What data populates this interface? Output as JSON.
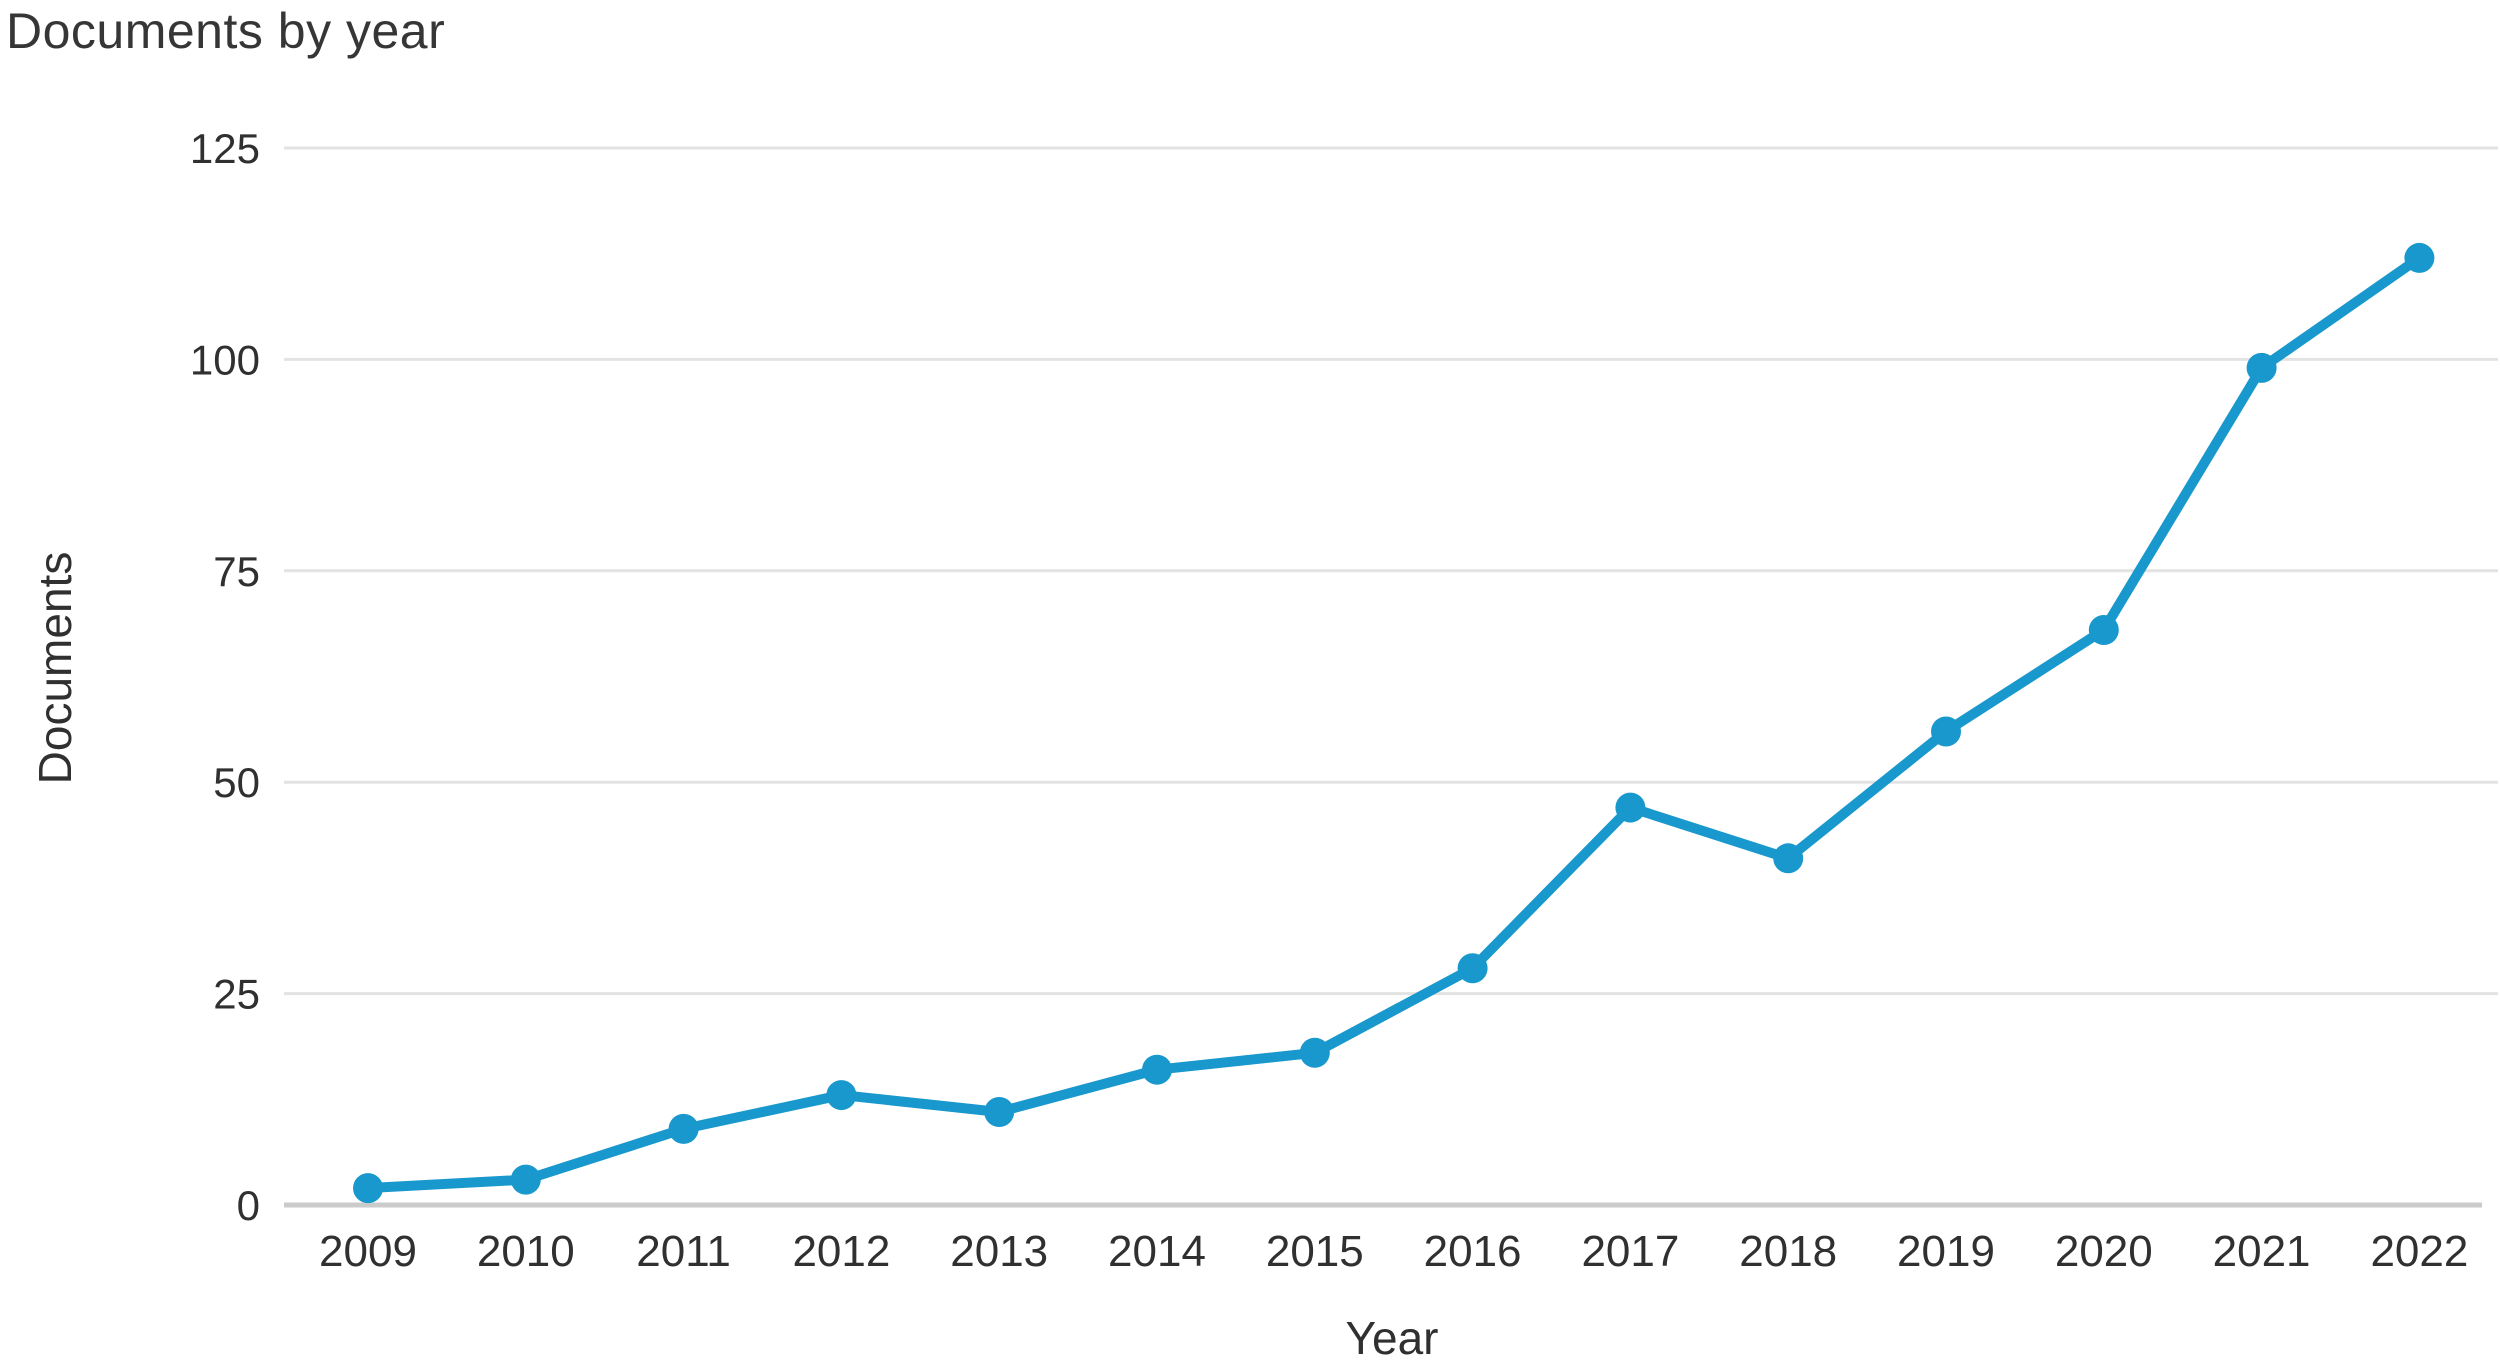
{
  "title": "Documents by year",
  "colors": {
    "line": "#1898CC",
    "marker": "#1898CC",
    "gridline": "#E3E3E3",
    "axis_line": "#CBCBCB",
    "title_text": "#363636",
    "tick_text": "#303030",
    "background": "#FFFFFF"
  },
  "chart_data": {
    "type": "line",
    "title": "Documents by year",
    "xlabel": "Year",
    "ylabel": "Documents",
    "categories": [
      "2009",
      "2010",
      "2011",
      "2012",
      "2013",
      "2014",
      "2015",
      "2016",
      "2017",
      "2018",
      "2019",
      "2020",
      "2021",
      "2022"
    ],
    "series": [
      {
        "name": "Documents",
        "values": [
          2,
          3,
          9,
          13,
          11,
          16,
          18,
          28,
          47,
          41,
          56,
          68,
          99,
          112
        ]
      }
    ],
    "ylim": [
      0,
      125
    ],
    "yticks": [
      0,
      25,
      50,
      75,
      100,
      125
    ],
    "grid": true,
    "legend": false,
    "marker": "circle"
  }
}
